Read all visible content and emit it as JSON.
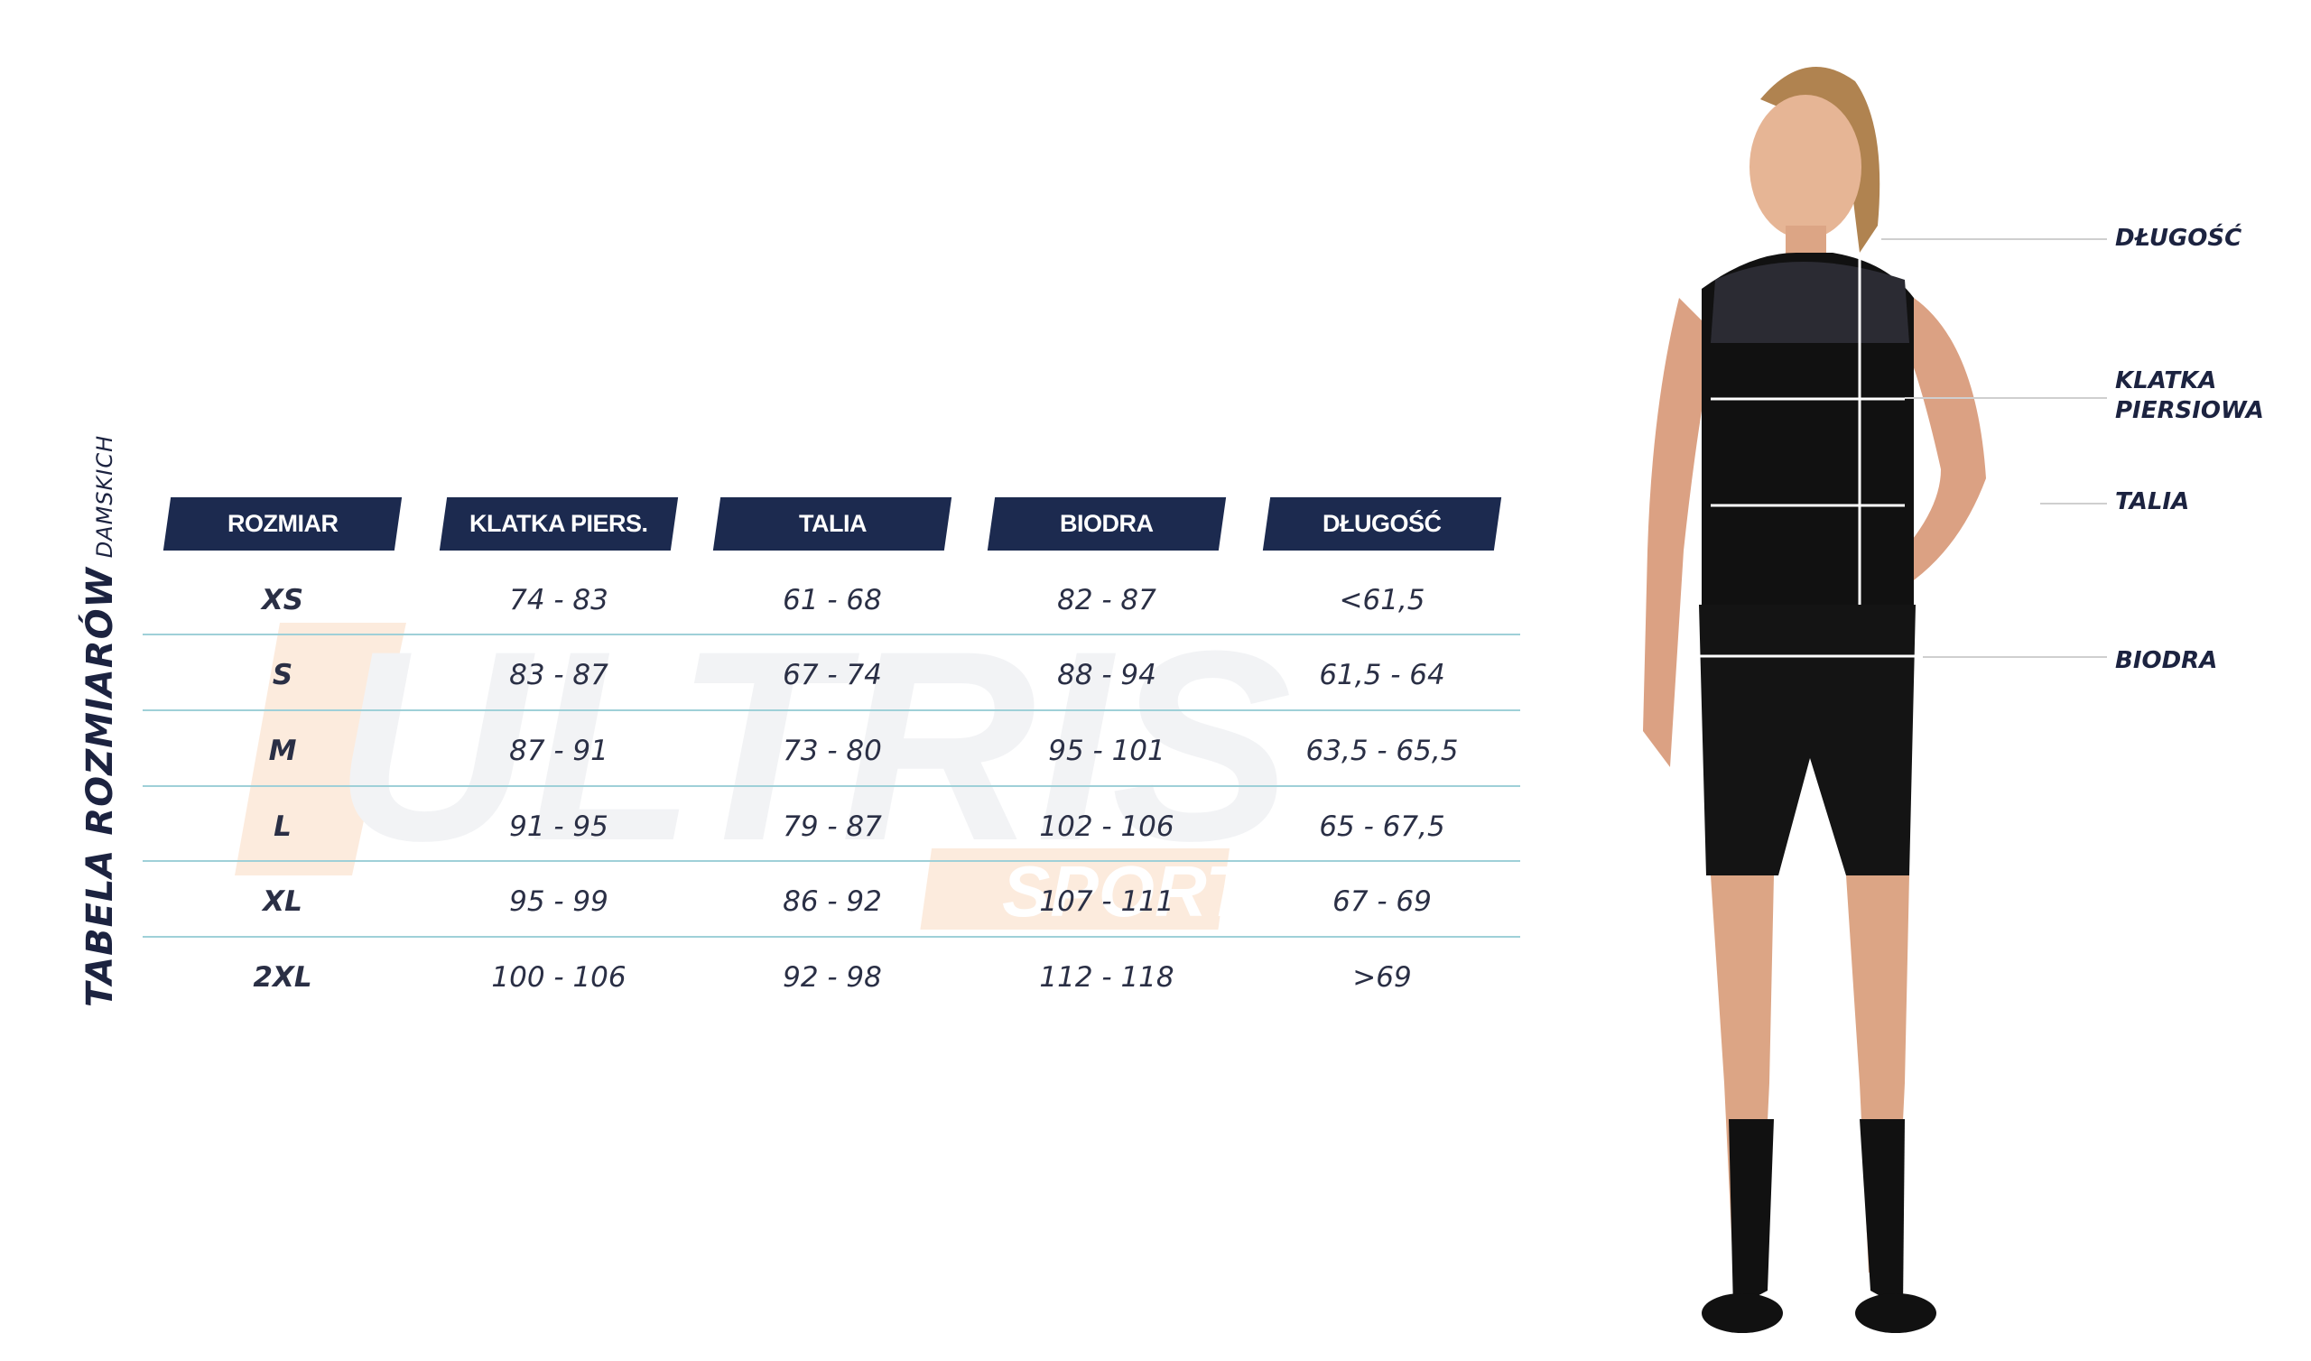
{
  "title": {
    "main": "TABELA ROZMIARÓW",
    "sub": "DAMSKICH"
  },
  "watermark": {
    "brand": "ULTRIS",
    "sub": "SPORT"
  },
  "colors": {
    "header_bg": "#1c2a4f",
    "text": "#1c2340",
    "row_divider": "#9fd0d8",
    "watermark": "#f6c9a4"
  },
  "table": {
    "headers": [
      "ROZMIAR",
      "KLATKA PIERS.",
      "TALIA",
      "BIODRA",
      "DŁUGOŚĆ"
    ],
    "rows": [
      [
        "XS",
        "74 - 83",
        "61  -  68",
        "82 - 87",
        "<61,5"
      ],
      [
        "S",
        "83 - 87",
        "67  -  74",
        "88 - 94",
        "61,5 - 64"
      ],
      [
        "M",
        "87 - 91",
        "73  -  80",
        "95 - 101",
        "63,5 - 65,5"
      ],
      [
        "L",
        "91 - 95",
        "79  -  87",
        "102 - 106",
        "65 - 67,5"
      ],
      [
        "XL",
        "95 - 99",
        "86  -  92",
        "107 - 111",
        "67 - 69"
      ],
      [
        "2XL",
        "100 - 106",
        "92  -  98",
        "112 - 118",
        ">69"
      ]
    ]
  },
  "measure_labels": {
    "length": "DŁUGOŚĆ",
    "chest_line1": "KLATKA",
    "chest_line2": "PIERSIOWA",
    "waist": "TALIA",
    "hips": "BIODRA"
  }
}
